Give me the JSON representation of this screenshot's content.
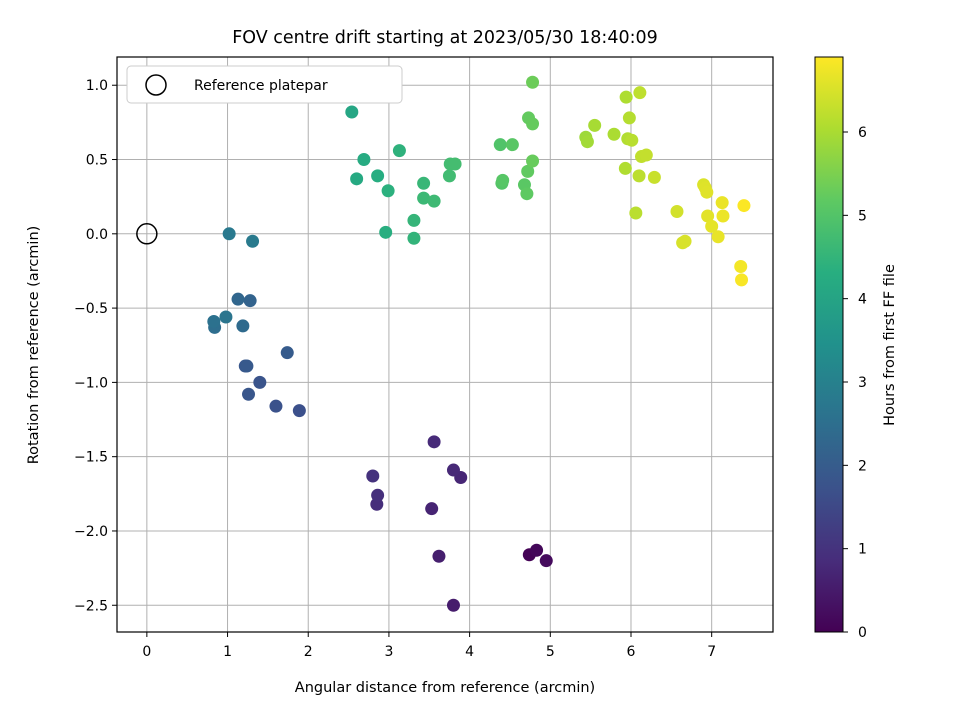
{
  "chart_data": {
    "type": "scatter",
    "title": "FOV centre drift starting at 2023/05/30 18:40:09",
    "xlabel": "Angular distance from reference (arcmin)",
    "ylabel": "Rotation from reference (arcmin)",
    "xlim": [
      -0.37,
      7.76
    ],
    "ylim": [
      -2.68,
      1.19
    ],
    "xticks": [
      "0",
      "1",
      "2",
      "3",
      "4",
      "5",
      "6",
      "7"
    ],
    "yticks": [
      "1.0",
      "0.5",
      "0.0",
      "−0.5",
      "−1.0",
      "−1.5",
      "−2.0",
      "−2.5"
    ],
    "grid": true,
    "legend": {
      "placement": "upper-left",
      "label": "Reference platepar"
    },
    "reference_point": {
      "x": 0.0,
      "y": 0.0
    },
    "colorbar": {
      "label": "Hours from first FF file",
      "colormap": "viridis",
      "range": [
        0,
        6.9
      ],
      "ticks": [
        "0",
        "1",
        "2",
        "3",
        "4",
        "5",
        "6"
      ]
    },
    "points": [
      {
        "x": 4.74,
        "y": -2.16,
        "t": 0.05
      },
      {
        "x": 4.83,
        "y": -2.13,
        "t": 0.12
      },
      {
        "x": 4.95,
        "y": -2.2,
        "t": 0.2
      },
      {
        "x": 3.8,
        "y": -2.5,
        "t": 0.55
      },
      {
        "x": 3.62,
        "y": -2.17,
        "t": 0.6
      },
      {
        "x": 3.53,
        "y": -1.85,
        "t": 0.7
      },
      {
        "x": 3.89,
        "y": -1.64,
        "t": 0.75
      },
      {
        "x": 3.8,
        "y": -1.59,
        "t": 0.8
      },
      {
        "x": 3.56,
        "y": -1.4,
        "t": 0.85
      },
      {
        "x": 2.85,
        "y": -1.82,
        "t": 0.9
      },
      {
        "x": 2.86,
        "y": -1.76,
        "t": 0.95
      },
      {
        "x": 2.8,
        "y": -1.63,
        "t": 1.0
      },
      {
        "x": 1.89,
        "y": -1.19,
        "t": 1.7
      },
      {
        "x": 1.6,
        "y": -1.16,
        "t": 1.75
      },
      {
        "x": 1.4,
        "y": -1.0,
        "t": 1.8
      },
      {
        "x": 1.26,
        "y": -1.08,
        "t": 1.85
      },
      {
        "x": 1.22,
        "y": -0.89,
        "t": 1.9
      },
      {
        "x": 1.24,
        "y": -0.89,
        "t": 1.95
      },
      {
        "x": 1.74,
        "y": -0.8,
        "t": 2.0
      },
      {
        "x": 1.28,
        "y": -0.45,
        "t": 2.2
      },
      {
        "x": 1.13,
        "y": -0.44,
        "t": 2.3
      },
      {
        "x": 1.19,
        "y": -0.62,
        "t": 2.4
      },
      {
        "x": 0.84,
        "y": -0.63,
        "t": 2.5
      },
      {
        "x": 0.83,
        "y": -0.59,
        "t": 2.6
      },
      {
        "x": 0.98,
        "y": -0.56,
        "t": 2.7
      },
      {
        "x": 1.02,
        "y": 0.0,
        "t": 2.8
      },
      {
        "x": 1.31,
        "y": -0.05,
        "t": 2.85
      },
      {
        "x": 2.54,
        "y": 0.82,
        "t": 4.1
      },
      {
        "x": 2.6,
        "y": 0.37,
        "t": 4.2
      },
      {
        "x": 2.69,
        "y": 0.5,
        "t": 4.25
      },
      {
        "x": 2.86,
        "y": 0.39,
        "t": 4.3
      },
      {
        "x": 2.96,
        "y": 0.01,
        "t": 4.35
      },
      {
        "x": 2.99,
        "y": 0.29,
        "t": 4.4
      },
      {
        "x": 3.13,
        "y": 0.56,
        "t": 4.45
      },
      {
        "x": 3.31,
        "y": -0.03,
        "t": 4.5
      },
      {
        "x": 3.31,
        "y": 0.09,
        "t": 4.55
      },
      {
        "x": 3.43,
        "y": 0.34,
        "t": 4.6
      },
      {
        "x": 3.43,
        "y": 0.24,
        "t": 4.65
      },
      {
        "x": 3.56,
        "y": 0.22,
        "t": 4.7
      },
      {
        "x": 3.75,
        "y": 0.39,
        "t": 4.75
      },
      {
        "x": 3.76,
        "y": 0.47,
        "t": 4.78
      },
      {
        "x": 3.82,
        "y": 0.47,
        "t": 4.8
      },
      {
        "x": 4.38,
        "y": 0.6,
        "t": 5.0
      },
      {
        "x": 4.4,
        "y": 0.34,
        "t": 5.05
      },
      {
        "x": 4.41,
        "y": 0.36,
        "t": 5.1
      },
      {
        "x": 4.53,
        "y": 0.6,
        "t": 5.12
      },
      {
        "x": 4.68,
        "y": 0.33,
        "t": 5.15
      },
      {
        "x": 4.71,
        "y": 0.27,
        "t": 5.2
      },
      {
        "x": 4.72,
        "y": 0.42,
        "t": 5.22
      },
      {
        "x": 4.73,
        "y": 0.78,
        "t": 5.25
      },
      {
        "x": 4.78,
        "y": 0.74,
        "t": 5.28
      },
      {
        "x": 4.78,
        "y": 0.49,
        "t": 5.3
      },
      {
        "x": 4.78,
        "y": 1.02,
        "t": 5.35
      },
      {
        "x": 5.44,
        "y": 0.65,
        "t": 5.9
      },
      {
        "x": 5.46,
        "y": 0.62,
        "t": 5.95
      },
      {
        "x": 5.55,
        "y": 0.73,
        "t": 6.0
      },
      {
        "x": 5.79,
        "y": 0.67,
        "t": 6.05
      },
      {
        "x": 5.94,
        "y": 0.92,
        "t": 6.08
      },
      {
        "x": 5.93,
        "y": 0.44,
        "t": 6.1
      },
      {
        "x": 5.96,
        "y": 0.64,
        "t": 6.12
      },
      {
        "x": 5.98,
        "y": 0.78,
        "t": 6.15
      },
      {
        "x": 6.01,
        "y": 0.63,
        "t": 6.18
      },
      {
        "x": 6.06,
        "y": 0.14,
        "t": 6.2
      },
      {
        "x": 6.1,
        "y": 0.39,
        "t": 6.22
      },
      {
        "x": 6.11,
        "y": 0.95,
        "t": 6.25
      },
      {
        "x": 6.13,
        "y": 0.52,
        "t": 6.28
      },
      {
        "x": 6.19,
        "y": 0.53,
        "t": 6.3
      },
      {
        "x": 6.29,
        "y": 0.38,
        "t": 6.35
      },
      {
        "x": 6.57,
        "y": 0.15,
        "t": 6.45
      },
      {
        "x": 6.64,
        "y": -0.06,
        "t": 6.5
      },
      {
        "x": 6.67,
        "y": -0.05,
        "t": 6.52
      },
      {
        "x": 6.9,
        "y": 0.33,
        "t": 6.55
      },
      {
        "x": 6.92,
        "y": 0.31,
        "t": 6.58
      },
      {
        "x": 6.94,
        "y": 0.28,
        "t": 6.6
      },
      {
        "x": 6.95,
        "y": 0.12,
        "t": 6.62
      },
      {
        "x": 7.0,
        "y": 0.05,
        "t": 6.65
      },
      {
        "x": 7.08,
        "y": -0.02,
        "t": 6.68
      },
      {
        "x": 7.13,
        "y": 0.21,
        "t": 6.7
      },
      {
        "x": 7.14,
        "y": 0.12,
        "t": 6.72
      },
      {
        "x": 7.36,
        "y": -0.22,
        "t": 6.8
      },
      {
        "x": 7.37,
        "y": -0.31,
        "t": 6.85
      },
      {
        "x": 7.4,
        "y": 0.19,
        "t": 6.88
      }
    ]
  }
}
